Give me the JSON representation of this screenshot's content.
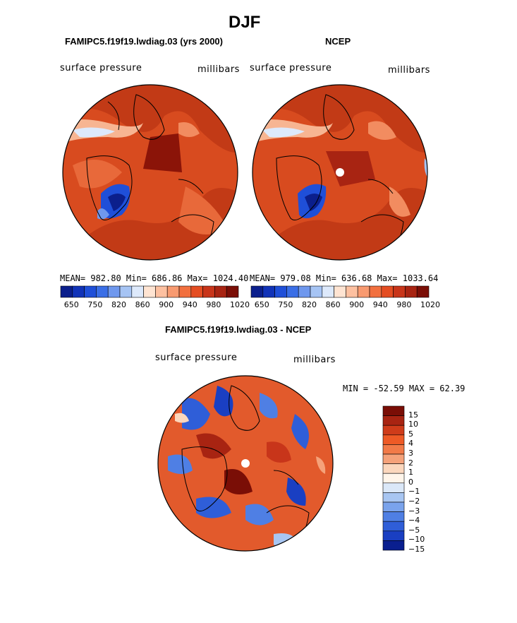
{
  "figure": {
    "title": "DJF",
    "units": "millibars",
    "variable": "surface pressure"
  },
  "panels": {
    "model": {
      "subtitle": "FAMIPC5.f19f19.lwdiag.03 (yrs 2000)",
      "variable": "surface pressure",
      "units": "millibars",
      "stats": "MEAN= 982.80   Min= 686.86   Max= 1024.40"
    },
    "obs": {
      "subtitle": "NCEP",
      "variable": "surface pressure",
      "units": "millibars",
      "stats": "MEAN= 979.08   Min= 636.68   Max= 1033.64"
    },
    "diff": {
      "subtitle": "FAMIPC5.f19f19.lwdiag.03 - NCEP",
      "variable": "surface pressure",
      "units": "millibars",
      "stats": "MIN = -52.59 MAX =  62.39"
    }
  },
  "colorbar_abs": {
    "colors": [
      "#0b1f8c",
      "#1133b8",
      "#1f4fd8",
      "#3a6ee6",
      "#6f98ee",
      "#a6c4f4",
      "#dde9fb",
      "#ffe4d2",
      "#fdc0a0",
      "#f89a70",
      "#f2703f",
      "#e44d22",
      "#c8351a",
      "#a82412",
      "#7a0e06"
    ],
    "labels": [
      "650",
      "750",
      "820",
      "860",
      "900",
      "940",
      "980",
      "1020"
    ]
  },
  "colorbar_diff": {
    "colors": [
      "#7a0e06",
      "#a82412",
      "#cf3c1a",
      "#ee5a26",
      "#f27a48",
      "#f5a27a",
      "#fbd7bd",
      "#fff5ea",
      "#dbe8f8",
      "#a8c6f2",
      "#7aa3ec",
      "#4f7fe4",
      "#2f5ed8",
      "#1a3fc2",
      "#0a1f8f"
    ],
    "labels": [
      "15",
      "10",
      "5",
      "4",
      "3",
      "2",
      "1",
      "0",
      "−1",
      "−2",
      "−3",
      "−4",
      "−5",
      "−10",
      "−15"
    ]
  }
}
